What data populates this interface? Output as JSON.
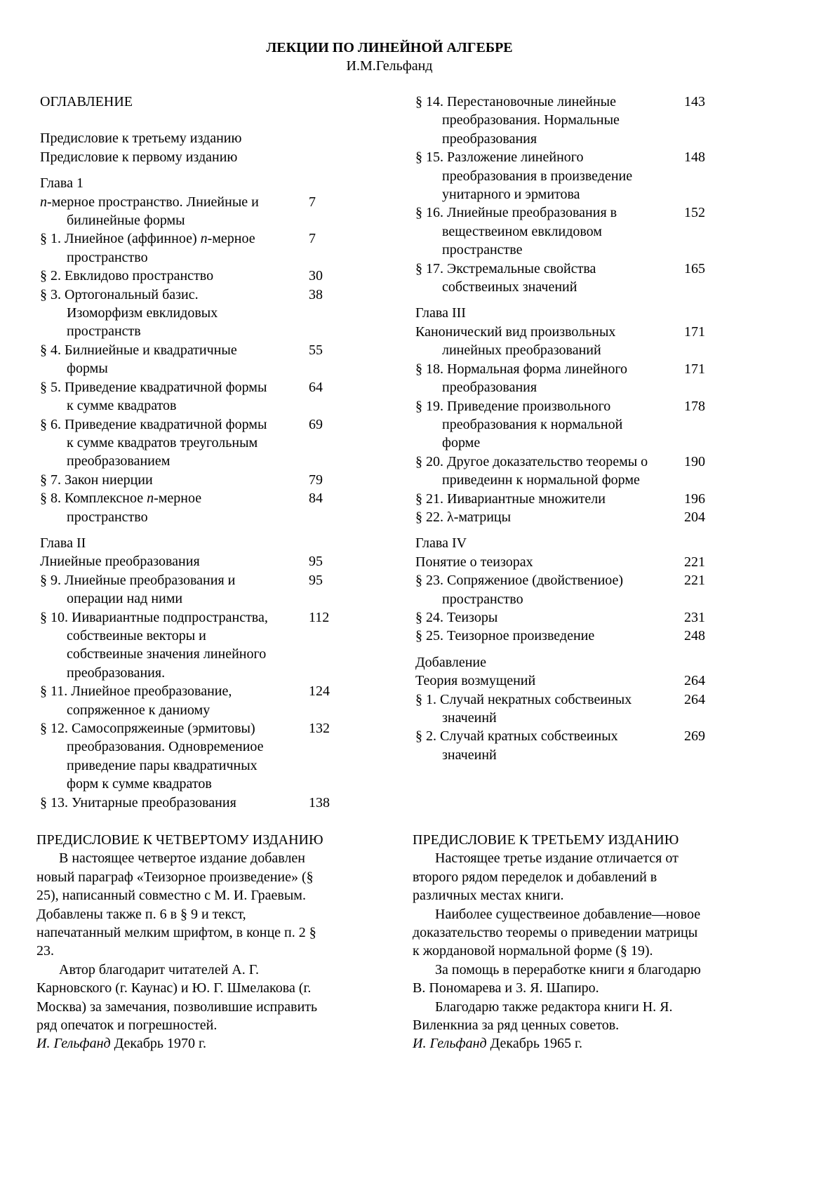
{
  "header": {
    "title": "ЛЕКЦИИ ПО ЛИНЕЙНОЙ АЛГЕБРЕ",
    "author": "И.М.Гельфанд"
  },
  "toc": {
    "left": [
      {
        "kind": "plain",
        "lines": [
          "ОГЛАВЛЕНИЕ"
        ]
      },
      {
        "kind": "plain",
        "gap": "gap2",
        "lines": [
          "Предисловие к третьему изданию"
        ]
      },
      {
        "kind": "plain",
        "lines": [
          "Предисловие к первому изданию"
        ]
      },
      {
        "kind": "heading",
        "gap": "gap",
        "lines": [
          "Глава 1"
        ]
      },
      {
        "kind": "entry",
        "lines": [
          [
            {
              "text": "n",
              "italic": true
            },
            {
              "text": "-мерное пространство. Лниейные и"
            }
          ],
          "билинейные формы"
        ],
        "page": "7"
      },
      {
        "kind": "entry",
        "lines": [
          [
            {
              "text": "§ 1. Лниейное (аффинное) "
            },
            {
              "text": "n",
              "italic": true
            },
            {
              "text": "-мерное"
            }
          ],
          "пространство"
        ],
        "page": "7"
      },
      {
        "kind": "entry",
        "lines": [
          "§ 2. Евклидово пространство"
        ],
        "page": "30"
      },
      {
        "kind": "entry",
        "lines": [
          "§ 3. Ортогональный базис.",
          "Изоморфизм евклидовых",
          "пространств"
        ],
        "page": "38"
      },
      {
        "kind": "entry",
        "lines": [
          "§ 4. Билниейные и квадратичные",
          "формы"
        ],
        "page": "55"
      },
      {
        "kind": "entry",
        "lines": [
          "§ 5. Приведение квадратичной формы",
          "к сумме квадратов"
        ],
        "page": "64"
      },
      {
        "kind": "entry",
        "lines": [
          "§ 6. Приведение квадратичной формы",
          "к сумме квадратов треугольным",
          "преобразованием"
        ],
        "page": "69"
      },
      {
        "kind": "entry",
        "lines": [
          "§ 7. Закон ниерции"
        ],
        "page": "79"
      },
      {
        "kind": "entry",
        "lines": [
          [
            {
              "text": "§ 8. Комплексное "
            },
            {
              "text": "n",
              "italic": true
            },
            {
              "text": "-мерное"
            }
          ],
          "пространство"
        ],
        "page": "84"
      },
      {
        "kind": "heading",
        "gap": "gap",
        "lines": [
          "Глава II"
        ]
      },
      {
        "kind": "entry",
        "lines": [
          "Лниейные преобразования"
        ],
        "page": "95"
      },
      {
        "kind": "entry",
        "lines": [
          "§ 9. Лниейные преобразования и",
          "операции над ними"
        ],
        "page": "95"
      },
      {
        "kind": "entry",
        "lines": [
          "§ 10. Иивариантные подпространства,",
          "собствеиные векторы и",
          "собствеиные значения линейного",
          "преобразования."
        ],
        "page": "112"
      },
      {
        "kind": "entry",
        "lines": [
          "§ 11. Лниейное преобразование,",
          "сопряженное к даниому"
        ],
        "page": "124"
      },
      {
        "kind": "entry",
        "lines": [
          "§ 12. Самосопряжеиные (эрмитовы)",
          "преобразования. Одновремениое",
          "приведение пары квадратичных",
          "форм к сумме квадратов"
        ],
        "page": "132"
      },
      {
        "kind": "entry",
        "lines": [
          "§ 13. Унитарные преобразования"
        ],
        "page": "138"
      }
    ],
    "right": [
      {
        "kind": "entry",
        "lines": [
          "§ 14. Перестановочные линейные",
          "преобразования. Нормальные",
          "преобразования"
        ],
        "page": "143"
      },
      {
        "kind": "entry",
        "lines": [
          "§ 15. Разложение линейного",
          "преобразования в произведение",
          "унитарного и эрмитова"
        ],
        "page": "148"
      },
      {
        "kind": "entry",
        "lines": [
          "§ 16. Лниейные преобразования в",
          "веществеином евклидовом",
          "пространстве"
        ],
        "page": "152"
      },
      {
        "kind": "entry",
        "lines": [
          "§ 17. Экстремальные свойства",
          "собствеиных значений"
        ],
        "page": "165"
      },
      {
        "kind": "heading",
        "gap": "gap",
        "lines": [
          "Глава III"
        ]
      },
      {
        "kind": "entry",
        "lines": [
          "Канонический вид произвольных",
          "линейных преобразований"
        ],
        "page": "171"
      },
      {
        "kind": "entry",
        "lines": [
          "§ 18. Нормальная форма линейного",
          "преобразования"
        ],
        "page": "171"
      },
      {
        "kind": "entry",
        "lines": [
          "§ 19. Приведение произвольного",
          "преобразования к нормальной",
          "форме"
        ],
        "page": "178"
      },
      {
        "kind": "entry",
        "lines": [
          "§ 20. Другое доказательство теоремы о",
          "приведеинн к нормальной форме"
        ],
        "page": "190"
      },
      {
        "kind": "entry",
        "lines": [
          "§ 21. Иивариантные множители"
        ],
        "page": "196"
      },
      {
        "kind": "entry",
        "lines": [
          "§ 22. λ-матрицы"
        ],
        "page": "204"
      },
      {
        "kind": "heading",
        "gap": "gap",
        "lines": [
          "Глава IV"
        ]
      },
      {
        "kind": "entry",
        "lines": [
          "Понятие о теизорах"
        ],
        "page": "221"
      },
      {
        "kind": "entry",
        "lines": [
          "§ 23. Сопряжениое (двойствениое)",
          "пространство"
        ],
        "page": "221"
      },
      {
        "kind": "entry",
        "lines": [
          "§ 24. Теизоры"
        ],
        "page": "231"
      },
      {
        "kind": "entry",
        "lines": [
          "§ 25. Теизорное произведение"
        ],
        "page": "248"
      },
      {
        "kind": "heading",
        "gap": "gap",
        "lines": [
          "Добавление"
        ]
      },
      {
        "kind": "entry",
        "lines": [
          "Теория возмущений"
        ],
        "page": "264"
      },
      {
        "kind": "entry",
        "lines": [
          "§ 1. Случай некратных собствеиных",
          "значеинй"
        ],
        "page": "264"
      },
      {
        "kind": "entry",
        "lines": [
          "§ 2. Случай кратных собствеиных",
          "значеинй"
        ],
        "page": "269"
      }
    ]
  },
  "prefaces": {
    "left": {
      "title": "ПРЕДИСЛОВИЕ К ЧЕТВЕРТОМУ ИЗДАНИЮ",
      "lines": [
        {
          "indent": true,
          "segs": [
            {
              "text": "В настоящее четвертое издание добавлен"
            }
          ]
        },
        {
          "segs": [
            {
              "text": "новый параграф «Теизорное произведение» (§"
            }
          ]
        },
        {
          "segs": [
            {
              "text": "25), написанный совместно с М. И. Граевым."
            }
          ]
        },
        {
          "segs": [
            {
              "text": "Добавлены также п. 6 в § 9 и текст,"
            }
          ]
        },
        {
          "segs": [
            {
              "text": "напечатанный мелким шрифтом, в конце п. 2 §"
            }
          ]
        },
        {
          "segs": [
            {
              "text": "23."
            }
          ]
        },
        {
          "indent": true,
          "segs": [
            {
              "text": "Автор благодарит читателей А. Г."
            }
          ]
        },
        {
          "segs": [
            {
              "text": "Карновского (г. Каунас) и Ю. Г. Шмелакова (г."
            }
          ]
        },
        {
          "segs": [
            {
              "text": "Москва) за замечания, позволившие исправить"
            }
          ]
        },
        {
          "segs": [
            {
              "text": "ряд опечаток и погрешностей."
            }
          ]
        },
        {
          "segs": [
            {
              "text": "И. Гельфанд",
              "italic": true
            },
            {
              "text": " Декабрь 1970 г."
            }
          ]
        }
      ]
    },
    "right": {
      "title": "ПРЕДИСЛОВИЕ К ТРЕТЬЕМУ ИЗДАНИЮ",
      "lines": [
        {
          "indent": true,
          "segs": [
            {
              "text": "Настоящее третье издание отличается от"
            }
          ]
        },
        {
          "segs": [
            {
              "text": "второго рядом переделок и добавлений в"
            }
          ]
        },
        {
          "segs": [
            {
              "text": "различных местах книги."
            }
          ]
        },
        {
          "indent": true,
          "segs": [
            {
              "text": "Наиболее существеиное добавление—новое"
            }
          ]
        },
        {
          "segs": [
            {
              "text": "доказательство теоремы о приведении матрицы"
            }
          ]
        },
        {
          "segs": [
            {
              "text": "к жордановой нормальной форме (§ 19)."
            }
          ]
        },
        {
          "indent": true,
          "segs": [
            {
              "text": "За помощь в переработке книги я благодарю"
            }
          ]
        },
        {
          "segs": [
            {
              "text": "В. Пономарева и 3. Я. Шапиро."
            }
          ]
        },
        {
          "indent": true,
          "segs": [
            {
              "text": "Благодарю также редактора книги Н. Я."
            }
          ]
        },
        {
          "segs": [
            {
              "text": "Виленкниа за ряд ценных советов."
            }
          ]
        },
        {
          "segs": [
            {
              "text": "И. Гельфанд",
              "italic": true
            },
            {
              "text": " Декабрь 1965 г."
            }
          ]
        }
      ]
    }
  }
}
